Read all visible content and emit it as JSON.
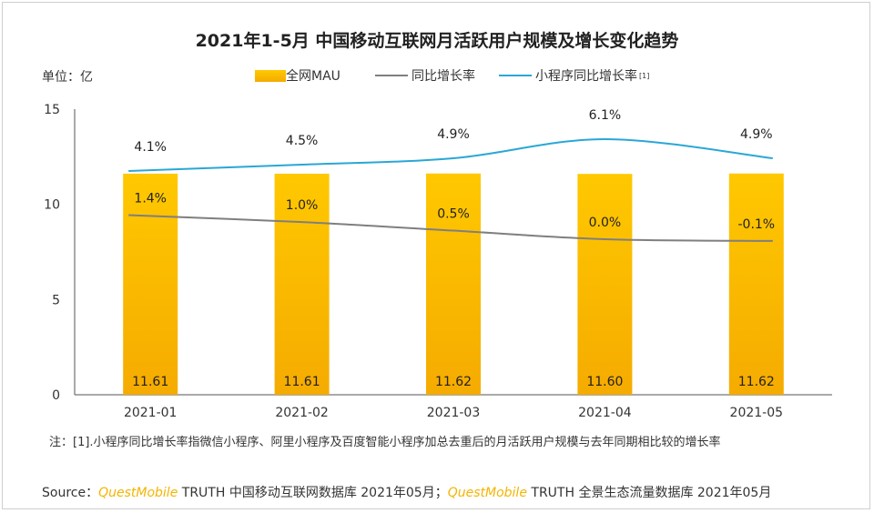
{
  "title": "2021年1-5月 中国移动互联网月活跃用户规模及增长变化趋势",
  "unit_label": "单位：亿",
  "legend": {
    "mau": "全网MAU",
    "yoy": "同比增长率",
    "mini": "小程序同比增长率",
    "mini_sup": "[1]"
  },
  "colors": {
    "bar_top": "#ffc800",
    "bar_bottom": "#f5ab00",
    "yoy_line": "#7f7f7f",
    "mini_line": "#2aa7d6",
    "brand": "#f5b400"
  },
  "chart_data": {
    "type": "bar",
    "categories": [
      "2021-01",
      "2021-02",
      "2021-03",
      "2021-04",
      "2021-05"
    ],
    "series": [
      {
        "name": "全网MAU",
        "values": [
          11.61,
          11.61,
          11.62,
          11.6,
          11.62
        ],
        "labels": [
          "11.61",
          "11.61",
          "11.62",
          "11.60",
          "11.62"
        ]
      },
      {
        "name": "同比增长率",
        "values": [
          1.4,
          1.0,
          0.5,
          0.0,
          -0.1
        ],
        "labels": [
          "1.4%",
          "1.0%",
          "0.5%",
          "0.0%",
          "-0.1%"
        ]
      },
      {
        "name": "小程序同比增长率",
        "values": [
          4.1,
          4.5,
          4.9,
          6.1,
          4.9
        ],
        "labels": [
          "4.1%",
          "4.5%",
          "4.9%",
          "6.1%",
          "4.9%"
        ]
      }
    ],
    "y_ticks": [
      "0",
      "5",
      "10",
      "15"
    ],
    "ylim": [
      0,
      15
    ],
    "grid": false
  },
  "note": "注：[1].小程序同比增长率指微信小程序、阿里小程序及百度智能小程序加总去重后的月活跃用户规模与去年同期相比较的增长率",
  "source": {
    "prefix": "Source：",
    "brand1": "QuestMobile",
    "text1": " TRUTH 中国移动互联网数据库 2021年05月；",
    "brand2": "QuestMobile",
    "text2": " TRUTH 全景生态流量数据库 2021年05月"
  }
}
